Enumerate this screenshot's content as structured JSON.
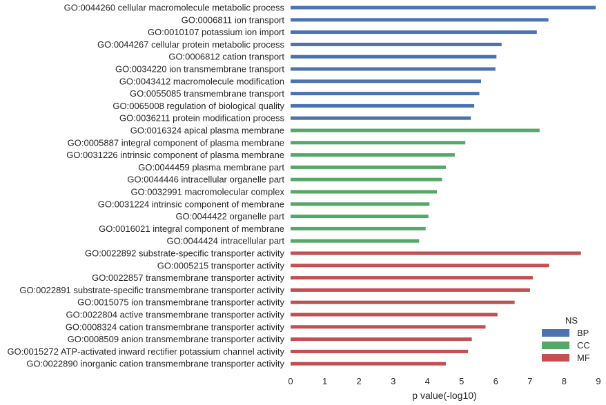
{
  "chart_data": {
    "type": "bar",
    "orientation": "horizontal",
    "xlabel": "p value(-log10)",
    "ylabel": "",
    "xlim": [
      0,
      9
    ],
    "xticks": [
      "0",
      "1",
      "2",
      "3",
      "4",
      "5",
      "6",
      "7",
      "8",
      "9"
    ],
    "grid": false,
    "legend": {
      "title": "NS",
      "placement": "bottom-right",
      "entries": [
        {
          "name": "BP",
          "color": "#4c72b0"
        },
        {
          "name": "CC",
          "color": "#55a868"
        },
        {
          "name": "MF",
          "color": "#c44e52"
        }
      ]
    },
    "bars": [
      {
        "label": "GO:0044260 cellular macromolecule metabolic process",
        "value": 8.92,
        "group": "BP"
      },
      {
        "label": "GO:0006811 ion transport",
        "value": 7.54,
        "group": "BP"
      },
      {
        "label": "GO:0010107 potassium ion import",
        "value": 7.2,
        "group": "BP"
      },
      {
        "label": "GO:0044267 cellular protein metabolic process",
        "value": 6.17,
        "group": "BP"
      },
      {
        "label": "GO:0006812 cation transport",
        "value": 6.02,
        "group": "BP"
      },
      {
        "label": "GO:0034220 ion transmembrane transport",
        "value": 5.99,
        "group": "BP"
      },
      {
        "label": "GO:0043412 macromolecule modification",
        "value": 5.57,
        "group": "BP"
      },
      {
        "label": "GO:0055085 transmembrane transport",
        "value": 5.52,
        "group": "BP"
      },
      {
        "label": "GO:0065008 regulation of biological quality",
        "value": 5.37,
        "group": "BP"
      },
      {
        "label": "GO:0036211 protein modification process",
        "value": 5.27,
        "group": "BP"
      },
      {
        "label": "GO:0016324 apical plasma membrane",
        "value": 7.28,
        "group": "CC"
      },
      {
        "label": "GO:0005887 integral component of plasma membrane",
        "value": 5.11,
        "group": "CC"
      },
      {
        "label": "GO:0031226 intrinsic component of plasma membrane",
        "value": 4.8,
        "group": "CC"
      },
      {
        "label": "GO:0044459 plasma membrane part",
        "value": 4.54,
        "group": "CC"
      },
      {
        "label": "GO:0044446 intracellular organelle part",
        "value": 4.43,
        "group": "CC"
      },
      {
        "label": "GO:0032991 macromolecular complex",
        "value": 4.28,
        "group": "CC"
      },
      {
        "label": "GO:0031224 intrinsic component of membrane",
        "value": 4.06,
        "group": "CC"
      },
      {
        "label": "GO:0044422 organelle part",
        "value": 4.03,
        "group": "CC"
      },
      {
        "label": "GO:0016021 integral component of membrane",
        "value": 3.95,
        "group": "CC"
      },
      {
        "label": "GO:0044424 intracellular part",
        "value": 3.76,
        "group": "CC"
      },
      {
        "label": "GO:0022892 substrate-specific transporter activity",
        "value": 8.49,
        "group": "MF"
      },
      {
        "label": "GO:0005215 transporter activity",
        "value": 7.56,
        "group": "MF"
      },
      {
        "label": "GO:0022857 transmembrane transporter activity",
        "value": 7.08,
        "group": "MF"
      },
      {
        "label": "GO:0022891 substrate-specific transmembrane transporter activity",
        "value": 7.0,
        "group": "MF"
      },
      {
        "label": "GO:0015075 ion transmembrane transporter activity",
        "value": 6.55,
        "group": "MF"
      },
      {
        "label": "GO:0022804 active transmembrane transporter activity",
        "value": 6.05,
        "group": "MF"
      },
      {
        "label": "GO:0008324 cation transmembrane transporter activity",
        "value": 5.7,
        "group": "MF"
      },
      {
        "label": "GO:0008509 anion transmembrane transporter activity",
        "value": 5.3,
        "group": "MF"
      },
      {
        "label": "GO:0015272 ATP-activated inward rectifier potassium channel activity",
        "value": 5.19,
        "group": "MF"
      },
      {
        "label": "GO:0022890 inorganic cation transmembrane transporter activity",
        "value": 4.54,
        "group": "MF"
      }
    ]
  }
}
